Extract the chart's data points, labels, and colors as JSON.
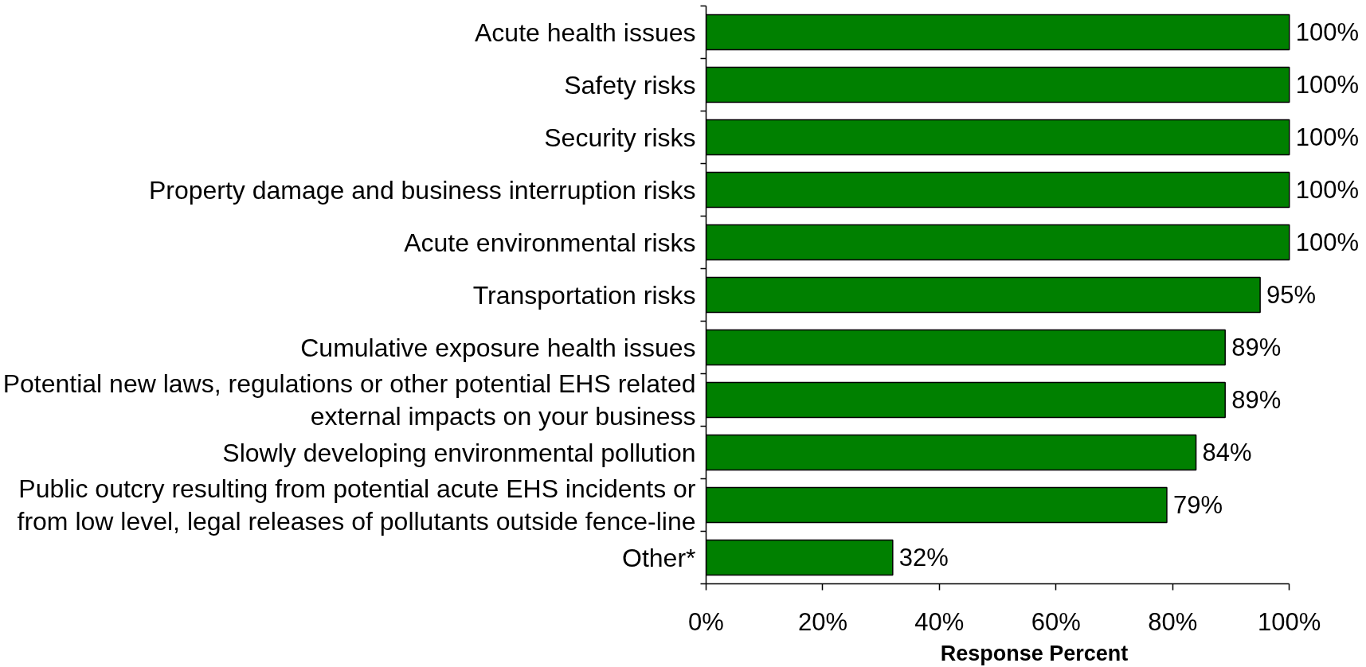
{
  "chart_data": {
    "type": "bar",
    "orientation": "horizontal",
    "xlabel": "Response Percent",
    "categories": [
      "Acute health issues",
      "Safety risks",
      "Security risks",
      "Property damage and business interruption risks",
      "Acute environmental risks",
      "Transportation risks",
      "Cumulative exposure health issues",
      "Potential new laws, regulations or other potential EHS related external impacts on your business",
      "Slowly developing environmental pollution",
      "Public outcry resulting from potential acute EHS incidents or from low level, legal releases of pollutants outside fence-line",
      "Other*"
    ],
    "values": [
      100,
      100,
      100,
      100,
      100,
      95,
      89,
      89,
      84,
      79,
      32
    ],
    "color": "#008000",
    "value_labels": [
      "100%",
      "100%",
      "100%",
      "100%",
      "100%",
      "95%",
      "89%",
      "89%",
      "84%",
      "79%",
      "32%"
    ],
    "xlim": [
      0,
      100
    ],
    "xticks": [
      {
        "value": 0,
        "label": "0%"
      },
      {
        "value": 20,
        "label": "20%"
      },
      {
        "value": 40,
        "label": "40%"
      },
      {
        "value": 60,
        "label": "60%"
      },
      {
        "value": 80,
        "label": "80%"
      },
      {
        "value": 100,
        "label": "100%"
      }
    ]
  }
}
